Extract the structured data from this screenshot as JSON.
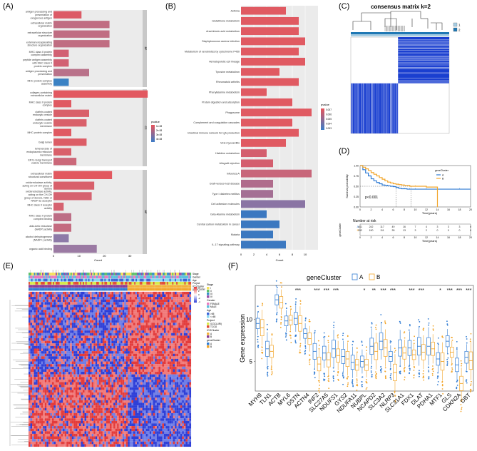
{
  "panels": {
    "a": {
      "label": "(A)",
      "type": "bar",
      "xlabel": "Count",
      "xlim": [
        0,
        35
      ],
      "ticks": [
        0,
        10,
        20,
        30
      ],
      "legend_title": "pvalue",
      "legend_ticks": [
        "1e-08",
        "2e-08",
        "3e-08",
        "4e-08"
      ],
      "facets": [
        {
          "name": "BP",
          "categories": [
            "antigen processing and presentation of exogenous antigen",
            "extracellular matrix organization",
            "extracellular structure organization",
            "external encapsulating structure organization",
            "MHC class II protein complex assembly",
            "peptide antigen assembly with MHC class II protein complex",
            "antigen processing and presentation",
            "MHC protein complex assembly"
          ],
          "values": [
            11,
            22,
            22,
            22,
            6,
            6,
            14,
            6
          ],
          "colors": [
            "#dc5b66",
            "#c06d82",
            "#c06d82",
            "#c06d82",
            "#d26173",
            "#d26173",
            "#b9728a",
            "#3b82c4"
          ]
        },
        {
          "name": "CC",
          "categories": [
            "collagen-containing extracellular matrix",
            "MHC class II protein complex",
            "clathrin-coated endocytic vesicle",
            "clathrin-coated endocytic vesicle membrane",
            "MHC protein complex",
            "Golgi lumen",
            "lumenal side of endoplasmic reticulum membrane",
            "ER to Golgi transport vesicle membrane"
          ],
          "values": [
            37,
            7,
            14,
            13,
            7,
            13,
            7,
            9
          ],
          "colors": [
            "#e25860",
            "#e05962",
            "#d9606a",
            "#d9606a",
            "#e05962",
            "#dc5d66",
            "#d9606a",
            "#cb6879"
          ]
        },
        {
          "name": "MF",
          "categories": [
            "extracellular matrix structural constituent",
            "oxidoreductase activity, acting on CH-OH group of donors",
            "oxidoreductase activity, acting on the CH-OH group of donors, NAD or NADP as acceptor",
            "MHC class II receptor activity",
            "MHC class II protein complex binding",
            "aldo-keto reductase (NADP) activity",
            "alcohol dehydrogenase (NADP+) activity",
            "organic acid binding"
          ],
          "values": [
            23,
            16,
            15,
            4,
            7,
            7,
            6,
            17
          ],
          "colors": [
            "#e2585f",
            "#d8606b",
            "#d66270",
            "#d66270",
            "#bd6e86",
            "#c46b80",
            "#8d7aa8",
            "#9b7aa3"
          ]
        }
      ]
    },
    "b": {
      "label": "(B)",
      "type": "bar",
      "xlabel": "Count",
      "xlim": [
        0,
        12
      ],
      "ticks": [
        0,
        2,
        4,
        6,
        8,
        10
      ],
      "legend_title": "pvalue",
      "legend_ticks": [
        "0.007",
        "0.006",
        "0.005",
        "0.004",
        "0.003"
      ],
      "categories": [
        "Asthma",
        "Glutathione metabolism",
        "Arachidonic acid metabolism",
        "Staphylococcus aureus infection",
        "Metabolism of xenobiotics by cytochrome P450",
        "Hematopoietic cell lineage",
        "Tyrosine metabolism",
        "Rheumatoid arthritis",
        "Phenylalanine metabolism",
        "Protein digestion and absorption",
        "Phagosome",
        "Complement and coagulation cascades",
        "Intestinal immune network for IgA production",
        "Viral myocarditis",
        "Histidine metabolism",
        "Allograft rejection",
        "Influenza A",
        "Graft-versus-host disease",
        "Type I diabetes mellitus",
        "Cell adhesion molecules",
        "beta-Alanine metabolism",
        "Central carbon metabolism in cancer",
        "Malaria",
        "IL-17 signaling pathway"
      ],
      "values": [
        7,
        9,
        9,
        10,
        9,
        10,
        6,
        9,
        4,
        8,
        11,
        8,
        9,
        7,
        4,
        5,
        11,
        5,
        5,
        10,
        4,
        6,
        5,
        7
      ],
      "colors": [
        "#e05a62",
        "#e05a62",
        "#e05a62",
        "#e05a62",
        "#e05a62",
        "#e05a62",
        "#e05a62",
        "#e05a62",
        "#e05a62",
        "#e05a62",
        "#e05a62",
        "#e05a62",
        "#e05a62",
        "#e05a62",
        "#d45e6e",
        "#d45e6e",
        "#c8667a",
        "#b06c8c",
        "#a46f94",
        "#8a74a4",
        "#3b78c0",
        "#3b78c0",
        "#3b78c0",
        "#3b78c0"
      ]
    },
    "c": {
      "label": "(C)",
      "type": "heatmap",
      "title": "consensus matrix k=2",
      "legend": [
        "1",
        "2"
      ],
      "legend_colors": [
        "#a6cde3",
        "#1f78b4"
      ]
    },
    "d": {
      "label": "(D)",
      "type": "line",
      "ylabel": "Survival probability",
      "xlabel": "Time(years)",
      "xlim": [
        0,
        20
      ],
      "ylim": [
        0,
        1
      ],
      "xticks": [
        0,
        2,
        4,
        6,
        8,
        10,
        12,
        14,
        16,
        18,
        20
      ],
      "yticks": [
        "0.00",
        "0.25",
        "0.50",
        "0.75",
        "1.00"
      ],
      "pvalue": "p<0.001",
      "legend_title": "geneCluster",
      "series": [
        {
          "name": "A",
          "color": "#2f7bd3",
          "x": [
            0,
            0.5,
            1,
            1.5,
            2,
            2.5,
            3,
            3.5,
            4,
            4.5,
            5,
            5.5,
            6,
            6.5,
            7,
            7.5,
            8,
            8.5,
            9,
            9.5,
            10,
            11,
            12,
            13,
            14,
            16,
            18,
            20
          ],
          "y": [
            1.0,
            0.9,
            0.82,
            0.75,
            0.68,
            0.63,
            0.59,
            0.56,
            0.53,
            0.52,
            0.51,
            0.5,
            0.49,
            0.47,
            0.45,
            0.44,
            0.44,
            0.43,
            0.43,
            0.43,
            0.43,
            0.43,
            0.43,
            0.43,
            0.43,
            0.43,
            0.43,
            0.43
          ]
        },
        {
          "name": "B",
          "color": "#f2a52a",
          "x": [
            0,
            0.5,
            1,
            1.5,
            2,
            2.5,
            3,
            3.5,
            4,
            4.5,
            5,
            5.5,
            6,
            6.5,
            7,
            7.5,
            8,
            8.5,
            9,
            9.5,
            10,
            11,
            12,
            13,
            14
          ],
          "y": [
            1.0,
            0.96,
            0.92,
            0.88,
            0.83,
            0.79,
            0.75,
            0.71,
            0.67,
            0.63,
            0.6,
            0.58,
            0.56,
            0.55,
            0.54,
            0.53,
            0.52,
            0.52,
            0.5,
            0.5,
            0.5,
            0.5,
            0.48,
            0.48,
            0.0
          ]
        }
      ],
      "median_lines": [
        6.5,
        9.2
      ],
      "risk_table": {
        "title": "Number at risk",
        "ylabel": "geneCluster",
        "rows": [
          {
            "name": "A",
            "color": "#2f7bd3",
            "values": [
              "441",
              "242",
              "117",
              "49",
              "16",
              "7",
              "4",
              "3",
              "3",
              "3",
              "0"
            ]
          },
          {
            "name": "B",
            "color": "#f2a52a",
            "values": [
              "292",
              "190",
              "111",
              "35",
              "13",
              "3",
              "2",
              "0",
              "0",
              "0",
              "0"
            ]
          }
        ],
        "xticks": [
          "0",
          "2",
          "4",
          "6",
          "8",
          "10",
          "12",
          "14",
          "16",
          "18",
          "20"
        ],
        "xlabel": "Time(years)"
      }
    },
    "e": {
      "label": "(E)",
      "type": "heatmap",
      "annotation_tracks": [
        "Stage",
        "Gender",
        "Age",
        "Project",
        "ICGCluster",
        "geneCluster"
      ],
      "legend": [
        {
          "title": "Stage",
          "items": [
            "I",
            "II",
            "III",
            "IV"
          ],
          "colors": [
            "#f5e15a",
            "#5fc06b",
            "#3a91c8",
            "#9a4fa8"
          ]
        },
        {
          "title": "Gender",
          "items": [
            "FEMALE",
            "MALE"
          ],
          "colors": [
            "#e97abf",
            "#5bc0de"
          ]
        },
        {
          "title": "Age",
          "items": [
            ">65",
            "<=65"
          ],
          "colors": [
            "#3a64d9",
            "#88d8f0"
          ]
        },
        {
          "title": "Project",
          "items": [
            "ICGC(LIRI)",
            "TCGA"
          ],
          "colors": [
            "#d6eb4a",
            "#e24f36"
          ]
        },
        {
          "title": "ICGCluster",
          "items": [
            "A",
            "B"
          ],
          "colors": [
            "#f2b13a",
            "#8a3d96"
          ]
        },
        {
          "title": "geneCluster",
          "items": [
            "A",
            "B"
          ],
          "colors": [
            "#2f7bd3",
            "#f2a52a"
          ]
        }
      ],
      "scale_ticks": [
        "4",
        "2",
        "0",
        "-2",
        "-4"
      ]
    },
    "f": {
      "label": "(F)",
      "type": "box",
      "ylabel": "Gene expression",
      "legend_title": "geneCluster",
      "legend": [
        "A",
        "B"
      ],
      "colors": [
        "#2f7bd3",
        "#f2a52a"
      ],
      "ylim": [
        1.5,
        14
      ],
      "yticks": [
        "5",
        "10"
      ],
      "genes": [
        "MYH9",
        "TLN1",
        "ACTB",
        "MYL6",
        "DSTN",
        "ACTN4",
        "INF2",
        "SLC27A5",
        "NDUFS1",
        "GYS2",
        "NDUFA11",
        "NUBPL",
        "NCAPD2",
        "SLC3A2",
        "NLRP3",
        "SLC31A1",
        "FDX1",
        "DLAT",
        "PDHA1",
        "MTF1",
        "GLS",
        "CDKN2A",
        "DBT"
      ],
      "signif": [
        "",
        "",
        "",
        "",
        "***",
        "",
        "***",
        "***",
        "***",
        "",
        "",
        "*",
        "**",
        "***",
        "***",
        "",
        "***",
        "***",
        "",
        "*",
        "***",
        "***",
        "***"
      ],
      "median_a": [
        9.5,
        6.5,
        12.3,
        9.8,
        10.1,
        8.3,
        6.2,
        6.0,
        6.5,
        5.6,
        4.9,
        5.0,
        6.8,
        7.4,
        5.6,
        6.6,
        6.6,
        6.8,
        6.8,
        5.3,
        7.4,
        4.6,
        5.5
      ],
      "median_b": [
        9.0,
        6.2,
        12.0,
        9.9,
        9.5,
        7.7,
        4.7,
        5.2,
        5.7,
        5.3,
        4.6,
        4.6,
        6.2,
        6.6,
        3.7,
        6.0,
        5.8,
        6.1,
        6.5,
        5.0,
        6.1,
        2.4,
        5.1
      ]
    }
  }
}
